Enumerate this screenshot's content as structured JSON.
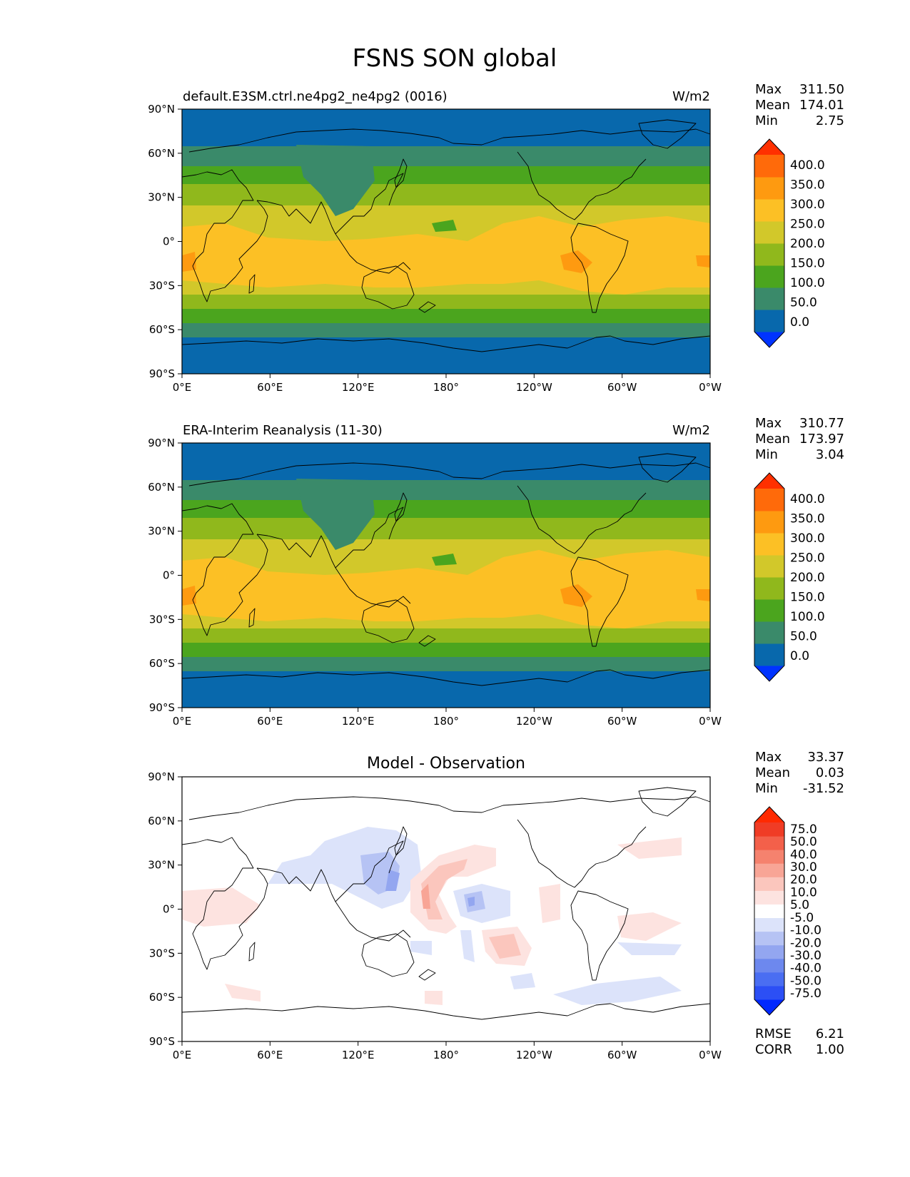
{
  "figure": {
    "title": "FSNS SON global"
  },
  "axes": {
    "lat_ticks": [
      "90°N",
      "60°N",
      "30°N",
      "0°",
      "30°S",
      "60°S",
      "90°S"
    ],
    "lon_ticks": [
      "0°E",
      "60°E",
      "120°E",
      "180°",
      "120°W",
      "60°W",
      "0°W"
    ]
  },
  "panels": [
    {
      "id": "model",
      "title_left": "default.E3SM.ctrl.ne4pg2_ne4pg2 (0016)",
      "title_center": "",
      "units": "W/m2",
      "stats": {
        "labels": [
          "Max",
          "Mean",
          "Min"
        ],
        "values": [
          "311.50",
          "174.01",
          "2.75"
        ]
      },
      "colorbar": {
        "labels": [
          "400.0",
          "350.0",
          "300.0",
          "250.0",
          "200.0",
          "150.0",
          "100.0",
          "50.0",
          "0.0"
        ],
        "colors": [
          "#0033ff",
          "#0868ac",
          "#3a8a6a",
          "#4ba51e",
          "#90b81c",
          "#d2c82a",
          "#fcc025",
          "#fe9a10",
          "#ff6a0a",
          "#ff3000"
        ]
      }
    },
    {
      "id": "obs",
      "title_left": "ERA-Interim Reanalysis (11-30)",
      "title_center": "",
      "units": "W/m2",
      "stats": {
        "labels": [
          "Max",
          "Mean",
          "Min"
        ],
        "values": [
          "310.77",
          "173.97",
          "3.04"
        ]
      },
      "colorbar": {
        "labels": [
          "400.0",
          "350.0",
          "300.0",
          "250.0",
          "200.0",
          "150.0",
          "100.0",
          "50.0",
          "0.0"
        ],
        "colors": [
          "#0033ff",
          "#0868ac",
          "#3a8a6a",
          "#4ba51e",
          "#90b81c",
          "#d2c82a",
          "#fcc025",
          "#fe9a10",
          "#ff6a0a",
          "#ff3000"
        ]
      }
    },
    {
      "id": "diff",
      "title_left": "",
      "title_center": "Model - Observation",
      "units": "",
      "stats": {
        "labels": [
          "Max",
          "Mean",
          "Min"
        ],
        "values": [
          "33.37",
          "0.03",
          "-31.52"
        ]
      },
      "colorbar": {
        "labels": [
          "75.0",
          "50.0",
          "40.0",
          "30.0",
          "20.0",
          "10.0",
          "5.0",
          "-5.0",
          "-10.0",
          "-20.0",
          "-30.0",
          "-40.0",
          "-50.0",
          "-75.0"
        ],
        "colors": [
          "#0028ff",
          "#2c4ff5",
          "#4a6ef2",
          "#6d88ee",
          "#93a6f0",
          "#b6c3f4",
          "#dce3fa",
          "#ffffff",
          "#fde3e0",
          "#fbc6bd",
          "#f8a596",
          "#f5826e",
          "#f3604a",
          "#f03c25",
          "#ff2a00"
        ]
      },
      "metrics": {
        "labels": [
          "RMSE",
          "CORR"
        ],
        "values": [
          "6.21",
          "1.00"
        ]
      }
    }
  ]
}
